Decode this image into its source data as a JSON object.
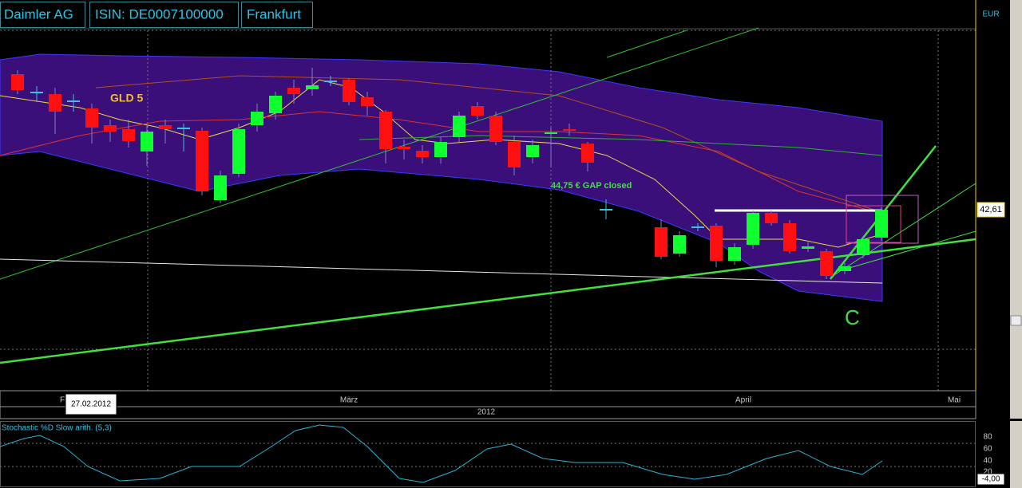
{
  "header": {
    "company": "Daimler AG",
    "isin": "ISIN: DE0007100000",
    "exchange": "Frankfurt",
    "currency": "EUR"
  },
  "price_label": "42,61",
  "annotations": {
    "indicator": "GLD 5",
    "gap": "44,75 € GAP closed",
    "wave": "C"
  },
  "x_axis": {
    "feb": "Fe",
    "tooltip": "27.02.2012",
    "mar": "März",
    "apr": "April",
    "may": "Mai",
    "year": "2012"
  },
  "stochastic": {
    "title": "Stochastic %D Slow arith. (5,3)",
    "ticks": [
      "80",
      "60",
      "40",
      "20"
    ],
    "current": "-4,00"
  }
}
